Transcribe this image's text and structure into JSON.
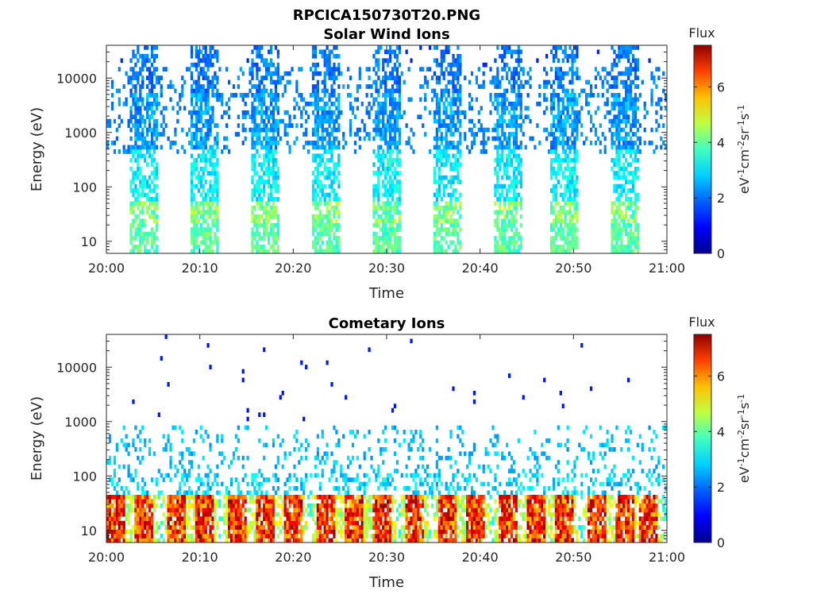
{
  "figure": {
    "title": "RPCICA150730T20.PNG"
  },
  "colormap": {
    "name": "jet",
    "stops": [
      "#00008f",
      "#0000ff",
      "#0080ff",
      "#00ffff",
      "#80ff80",
      "#ffff00",
      "#ff8000",
      "#ff0000",
      "#800000"
    ]
  },
  "chart_data": [
    {
      "type": "heatmap",
      "title": "Solar Wind Ions",
      "xlabel": "Time",
      "ylabel": "Energy (eV)",
      "x_ticks": [
        "20:00",
        "20:10",
        "20:20",
        "20:30",
        "20:40",
        "20:50",
        "21:00"
      ],
      "x_range": [
        "20:00",
        "21:00"
      ],
      "y_scale": "log",
      "y_ticks": [
        10,
        100,
        1000,
        10000
      ],
      "y_tick_labels": [
        "10",
        "100",
        "1000",
        "10000"
      ],
      "y_range": [
        6,
        40000
      ],
      "colorbar": {
        "title": "Flux",
        "label": "eV-1cm-2sr-1s-1",
        "range": [
          0,
          7.5
        ],
        "ticks": [
          "0",
          "2",
          "4",
          "6"
        ]
      },
      "bursts": [
        {
          "start": "20:02:30",
          "end": "20:05:30"
        },
        {
          "start": "20:09:00",
          "end": "20:12:00"
        },
        {
          "start": "20:15:30",
          "end": "20:18:30"
        },
        {
          "start": "20:22:00",
          "end": "20:25:00"
        },
        {
          "start": "20:28:30",
          "end": "20:31:30"
        },
        {
          "start": "20:35:00",
          "end": "20:38:00"
        },
        {
          "start": "20:41:30",
          "end": "20:44:30"
        },
        {
          "start": "20:47:30",
          "end": "20:50:30"
        },
        {
          "start": "20:54:00",
          "end": "20:57:00"
        }
      ]
    },
    {
      "type": "heatmap",
      "title": "Cometary Ions",
      "xlabel": "Time",
      "ylabel": "Energy (eV)",
      "x_ticks": [
        "20:00",
        "20:10",
        "20:20",
        "20:30",
        "20:40",
        "20:50",
        "21:00"
      ],
      "x_range": [
        "20:00",
        "21:00"
      ],
      "y_scale": "log",
      "y_ticks": [
        10,
        100,
        1000,
        10000
      ],
      "y_tick_labels": [
        "10",
        "100",
        "1000",
        "10000"
      ],
      "y_range": [
        6,
        40000
      ],
      "colorbar": {
        "title": "Flux",
        "label": "eV-1cm-2sr-1s-1",
        "range": [
          0,
          7.5
        ],
        "ticks": [
          "0",
          "2",
          "4",
          "6"
        ]
      },
      "peak_times": [
        "20:01:00",
        "20:04:00",
        "20:07:30",
        "20:10:30",
        "20:14:00",
        "20:17:00",
        "20:20:00",
        "20:23:30",
        "20:26:30",
        "20:29:30",
        "20:33:00",
        "20:36:30",
        "20:39:30",
        "20:43:00",
        "20:46:00",
        "20:49:00",
        "20:52:30",
        "20:55:30",
        "20:58:00"
      ]
    }
  ]
}
